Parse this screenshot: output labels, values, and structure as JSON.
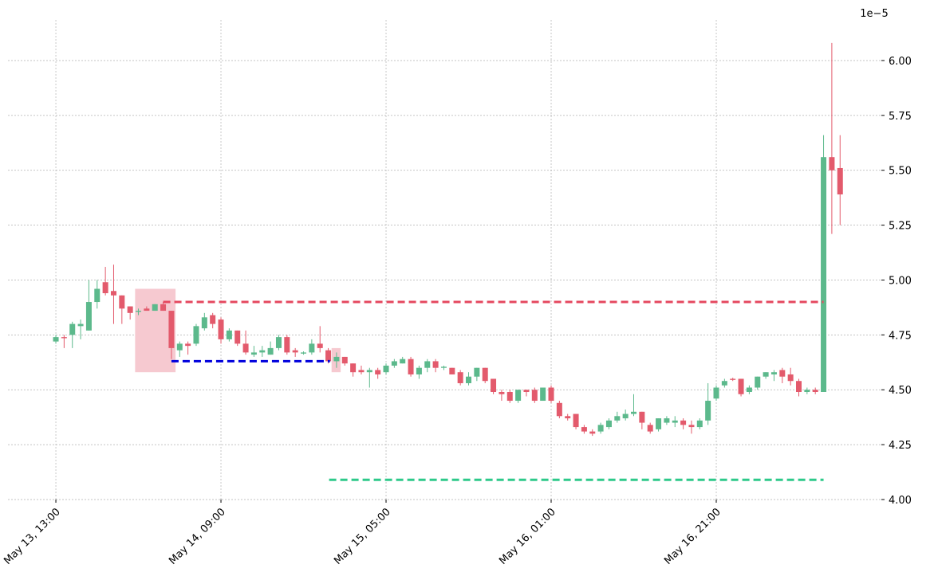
{
  "chart_data": {
    "type": "candlestick",
    "offset_label": "1e−5",
    "x": [
      0,
      1,
      2,
      3,
      4,
      5,
      6,
      7,
      8,
      9,
      10,
      11,
      12,
      13,
      14,
      15,
      16,
      17,
      18,
      19,
      20,
      21,
      22,
      23,
      24,
      25,
      26,
      27,
      28,
      29,
      30,
      31,
      32,
      33,
      34,
      35,
      36,
      37,
      38,
      39,
      40,
      41,
      42,
      43,
      44,
      45,
      46,
      47,
      48,
      49,
      50,
      51,
      52,
      53,
      54,
      55,
      56,
      57,
      58,
      59,
      60,
      61,
      62,
      63,
      64,
      65,
      66,
      67,
      68,
      69,
      70,
      71,
      72,
      73,
      74,
      75,
      76,
      77,
      78,
      79,
      80,
      81,
      82,
      83,
      84,
      85,
      86,
      87,
      88,
      89,
      90,
      91,
      92,
      93,
      94,
      95
    ],
    "open": [
      4.72,
      4.74,
      4.75,
      4.79,
      4.77,
      4.9,
      4.99,
      4.95,
      4.93,
      4.88,
      4.855,
      4.87,
      4.86,
      4.89,
      4.86,
      4.68,
      4.71,
      4.71,
      4.78,
      4.84,
      4.82,
      4.73,
      4.77,
      4.71,
      4.66,
      4.67,
      4.66,
      4.69,
      4.74,
      4.68,
      4.665,
      4.67,
      4.71,
      4.68,
      4.63,
      4.65,
      4.62,
      4.59,
      4.58,
      4.59,
      4.58,
      4.61,
      4.62,
      4.64,
      4.57,
      4.6,
      4.63,
      4.6,
      4.6,
      4.58,
      4.53,
      4.56,
      4.6,
      4.55,
      4.49,
      4.49,
      4.45,
      4.5,
      4.5,
      4.45,
      4.51,
      4.44,
      4.38,
      4.39,
      4.33,
      4.31,
      4.31,
      4.33,
      4.36,
      4.37,
      4.39,
      4.4,
      4.34,
      4.32,
      4.35,
      4.35,
      4.36,
      4.34,
      4.33,
      4.36,
      4.46,
      4.52,
      4.55,
      4.55,
      4.49,
      4.51,
      4.56,
      4.57,
      4.59,
      4.57,
      4.54,
      4.49,
      4.5,
      4.49,
      5.56,
      5.51
    ],
    "high": [
      4.75,
      4.75,
      4.81,
      4.82,
      5.0,
      5.0,
      5.06,
      5.07,
      4.93,
      4.88,
      4.87,
      4.88,
      4.89,
      4.9,
      4.86,
      4.72,
      4.72,
      4.8,
      4.85,
      4.85,
      4.83,
      4.78,
      4.77,
      4.77,
      4.7,
      4.7,
      4.72,
      4.75,
      4.75,
      4.69,
      4.675,
      4.73,
      4.79,
      4.69,
      4.67,
      4.65,
      4.62,
      4.61,
      4.6,
      4.6,
      4.62,
      4.64,
      4.65,
      4.65,
      4.61,
      4.64,
      4.64,
      4.61,
      4.6,
      4.59,
      4.58,
      4.6,
      4.6,
      4.55,
      4.5,
      4.5,
      4.5,
      4.5,
      4.51,
      4.51,
      4.52,
      4.45,
      4.39,
      4.39,
      4.34,
      4.32,
      4.35,
      4.37,
      4.4,
      4.41,
      4.48,
      4.4,
      4.35,
      4.37,
      4.38,
      4.38,
      4.37,
      4.36,
      4.37,
      4.53,
      4.52,
      4.55,
      4.555,
      4.55,
      4.52,
      4.56,
      4.58,
      4.59,
      4.6,
      4.6,
      4.55,
      4.51,
      4.51,
      5.66,
      6.08,
      5.66
    ],
    "low": [
      4.71,
      4.69,
      4.69,
      4.73,
      4.77,
      4.87,
      4.93,
      4.8,
      4.8,
      4.82,
      4.84,
      4.86,
      4.86,
      4.86,
      4.64,
      4.65,
      4.66,
      4.7,
      4.77,
      4.78,
      4.71,
      4.72,
      4.7,
      4.66,
      4.65,
      4.65,
      4.66,
      4.68,
      4.66,
      4.65,
      4.66,
      4.66,
      4.67,
      4.62,
      4.6,
      4.61,
      4.56,
      4.57,
      4.51,
      4.55,
      4.57,
      4.6,
      4.62,
      4.56,
      4.55,
      4.58,
      4.58,
      4.59,
      4.57,
      4.52,
      4.52,
      4.54,
      4.53,
      4.48,
      4.45,
      4.44,
      4.44,
      4.47,
      4.44,
      4.45,
      4.44,
      4.37,
      4.36,
      4.32,
      4.3,
      4.29,
      4.3,
      4.32,
      4.35,
      4.36,
      4.38,
      4.32,
      4.3,
      4.31,
      4.34,
      4.33,
      4.32,
      4.3,
      4.32,
      4.34,
      4.45,
      4.51,
      4.54,
      4.47,
      4.48,
      4.5,
      4.55,
      4.54,
      4.53,
      4.52,
      4.47,
      4.48,
      4.48,
      4.49,
      5.21,
      5.25
    ],
    "close": [
      4.74,
      4.735,
      4.8,
      4.8,
      4.9,
      4.96,
      4.94,
      4.93,
      4.87,
      4.85,
      4.86,
      4.86,
      4.89,
      4.86,
      4.69,
      4.71,
      4.7,
      4.79,
      4.83,
      4.8,
      4.73,
      4.77,
      4.71,
      4.67,
      4.67,
      4.68,
      4.69,
      4.74,
      4.67,
      4.67,
      4.67,
      4.71,
      4.69,
      4.63,
      4.65,
      4.62,
      4.58,
      4.58,
      4.59,
      4.57,
      4.61,
      4.63,
      4.64,
      4.57,
      4.6,
      4.63,
      4.6,
      4.605,
      4.57,
      4.53,
      4.56,
      4.6,
      4.54,
      4.49,
      4.48,
      4.45,
      4.5,
      4.49,
      4.45,
      4.51,
      4.45,
      4.38,
      4.37,
      4.33,
      4.31,
      4.3,
      4.34,
      4.36,
      4.38,
      4.39,
      4.4,
      4.35,
      4.31,
      4.37,
      4.37,
      4.36,
      4.34,
      4.33,
      4.36,
      4.45,
      4.51,
      4.54,
      4.545,
      4.48,
      4.51,
      4.56,
      4.58,
      4.58,
      4.56,
      4.54,
      4.49,
      4.5,
      4.49,
      5.56,
      5.5,
      5.39
    ],
    "up_color": "#5cb98c",
    "down_color": "#e35a6c",
    "zones": [
      {
        "x": [
          9.6,
          14.5
        ],
        "y": [
          4.58,
          4.96
        ],
        "color": "#f6c9d0"
      },
      {
        "x": [
          33.4,
          34.5
        ],
        "y": [
          4.58,
          4.69
        ],
        "color": "#f6c9d0"
      }
    ],
    "levels": [
      {
        "value": 4.9,
        "x": [
          13,
          93
        ],
        "color": "#e5485f"
      },
      {
        "value": 4.63,
        "x": [
          14,
          33.2
        ],
        "color": "#0000dd"
      },
      {
        "value": 4.09,
        "x": [
          33.1,
          93
        ],
        "color": "#2ec98a"
      }
    ],
    "xlim": [
      -5.8,
      100
    ],
    "xticks": [
      {
        "value": 0,
        "label": "May 13, 13:00"
      },
      {
        "value": 20,
        "label": "May 14, 09:00"
      },
      {
        "value": 40,
        "label": "May 15, 05:00"
      },
      {
        "value": 60,
        "label": "May 16, 01:00"
      },
      {
        "value": 80,
        "label": "May 16, 21:00"
      }
    ],
    "ylim": [
      4.0,
      6.185
    ],
    "yticks": [
      {
        "value": 4.0,
        "label": "4.00"
      },
      {
        "value": 4.25,
        "label": "4.25"
      },
      {
        "value": 4.5,
        "label": "4.50"
      },
      {
        "value": 4.75,
        "label": "4.75"
      },
      {
        "value": 5.0,
        "label": "5.00"
      },
      {
        "value": 5.25,
        "label": "5.25"
      },
      {
        "value": 5.5,
        "label": "5.50"
      },
      {
        "value": 5.75,
        "label": "5.75"
      },
      {
        "value": 6.0,
        "label": "6.00"
      }
    ],
    "grid": true
  }
}
